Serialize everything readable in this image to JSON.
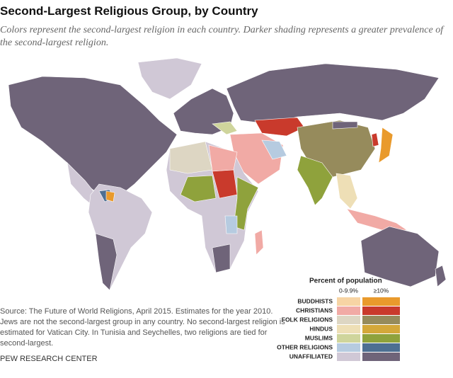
{
  "header": {
    "title": "Second-Largest Religious Group, by Country",
    "subtitle": "Colors represent the second-largest religion in each country. Darker shading represents a greater prevalence of the second-largest religion."
  },
  "legend": {
    "title": "Percent of population",
    "columns": [
      "0-9.9%",
      "≥10%"
    ],
    "rows": [
      {
        "name": "BUDDHISTS",
        "colors": [
          "#f7d4a4",
          "#e99a2c"
        ]
      },
      {
        "name": "CHRISTIANS",
        "colors": [
          "#f1aaa5",
          "#c93a2c"
        ]
      },
      {
        "name": "FOLK RELIGIONS",
        "colors": [
          "#ddd6c3",
          "#968b5c"
        ]
      },
      {
        "name": "HINDUS",
        "colors": [
          "#eedfb6",
          "#d4a83a"
        ]
      },
      {
        "name": "MUSLIMS",
        "colors": [
          "#cfd59c",
          "#8fa23c"
        ]
      },
      {
        "name": "OTHER RELIGIONS",
        "colors": [
          "#b6cbe0",
          "#4d6f92"
        ]
      },
      {
        "name": "UNAFFILIATED",
        "colors": [
          "#d0c8d6",
          "#6f6479"
        ]
      }
    ]
  },
  "source": "Source: The Future of World Religions, April 2015. Estimates for the year 2010. Jews are not the second-largest group in any country. No second-largest religion is estimated for Vatican City. In Tunisia and Seychelles, two religions are tied for second-largest.",
  "footer": "PEW RESEARCH CENTER"
}
